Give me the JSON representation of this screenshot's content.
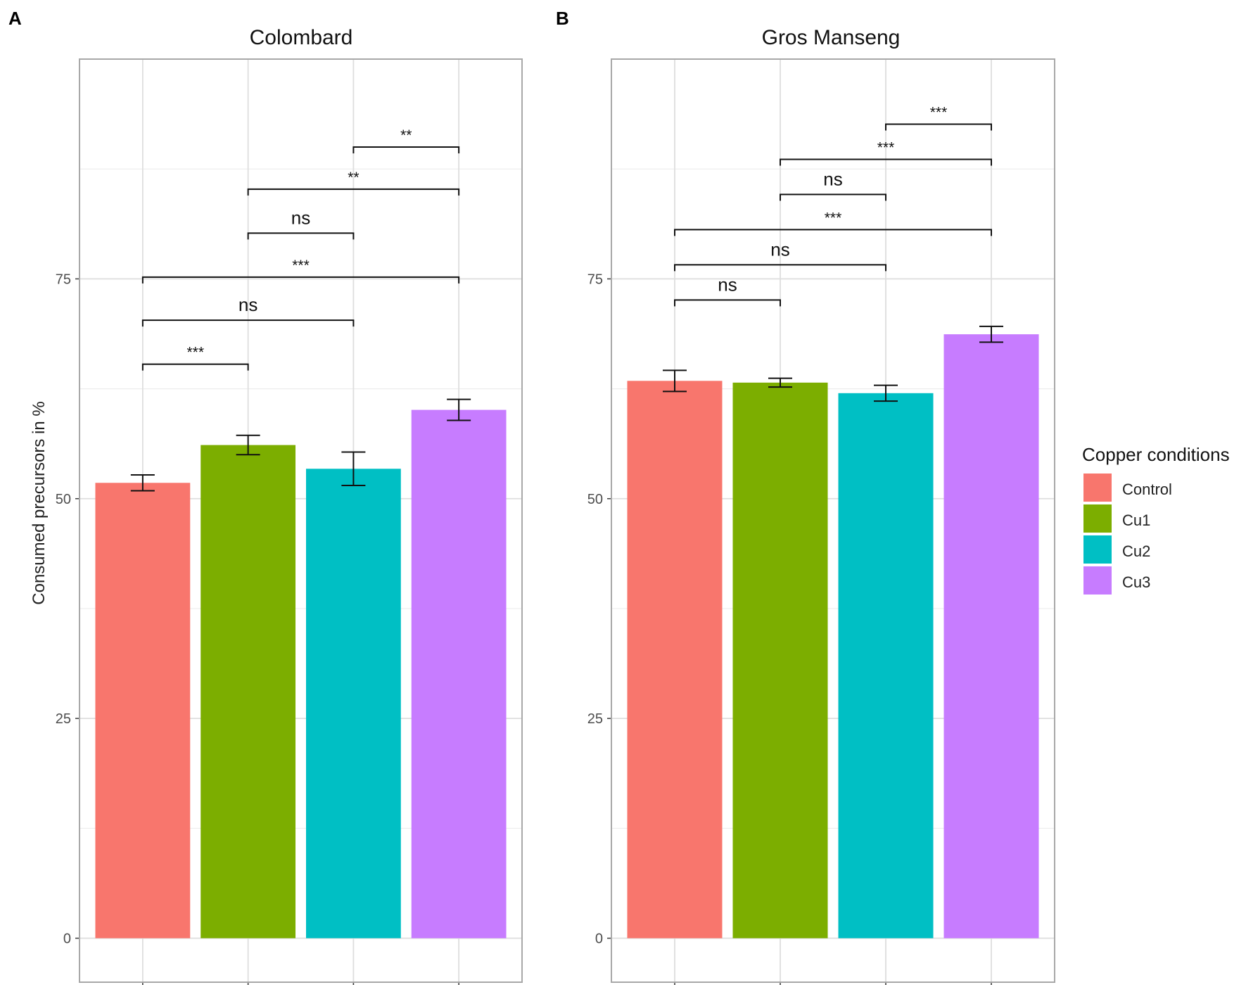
{
  "figure": {
    "y_axis_label": "Consumed precursors in %",
    "legend_title": "Copper conditions"
  },
  "legend": [
    {
      "label": "Control",
      "color": "#F8766D"
    },
    {
      "label": "Cu1",
      "color": "#7CAE00"
    },
    {
      "label": "Cu2",
      "color": "#00BFC4"
    },
    {
      "label": "Cu3",
      "color": "#C77CFF"
    }
  ],
  "chart_data": [
    {
      "type": "bar",
      "panel_label": "A",
      "title": "Colombard",
      "xlabel": "",
      "ylabel": "Consumed precursors in %",
      "ylim": [
        -5,
        100
      ],
      "yticks": [
        0,
        25,
        50,
        75
      ],
      "grid": true,
      "categories": [
        "Control",
        "Cu1",
        "Cu2",
        "Cu3"
      ],
      "values": [
        51.8,
        56.1,
        53.4,
        60.1
      ],
      "errors": [
        0.9,
        1.1,
        1.9,
        1.2
      ],
      "comparisons": [
        {
          "from": 0,
          "to": 1,
          "y": 65.3,
          "label": "***"
        },
        {
          "from": 0,
          "to": 2,
          "y": 70.3,
          "label": "ns"
        },
        {
          "from": 0,
          "to": 3,
          "y": 75.2,
          "label": "***"
        },
        {
          "from": 1,
          "to": 2,
          "y": 80.2,
          "label": "ns"
        },
        {
          "from": 1,
          "to": 3,
          "y": 85.2,
          "label": "**"
        },
        {
          "from": 2,
          "to": 3,
          "y": 90.0,
          "label": "**"
        }
      ]
    },
    {
      "type": "bar",
      "panel_label": "B",
      "title": "Gros Manseng",
      "xlabel": "",
      "ylabel": "",
      "ylim": [
        -5,
        100
      ],
      "yticks": [
        0,
        25,
        50,
        75
      ],
      "grid": true,
      "categories": [
        "Control",
        "Cu1",
        "Cu2",
        "Cu3"
      ],
      "values": [
        63.4,
        63.2,
        62.0,
        68.7
      ],
      "errors": [
        1.2,
        0.5,
        0.9,
        0.9
      ],
      "comparisons": [
        {
          "from": 0,
          "to": 1,
          "y": 72.6,
          "label": "ns"
        },
        {
          "from": 0,
          "to": 2,
          "y": 76.6,
          "label": "ns"
        },
        {
          "from": 0,
          "to": 3,
          "y": 80.6,
          "label": "***"
        },
        {
          "from": 1,
          "to": 2,
          "y": 84.6,
          "label": "ns"
        },
        {
          "from": 1,
          "to": 3,
          "y": 88.6,
          "label": "***"
        },
        {
          "from": 2,
          "to": 3,
          "y": 92.6,
          "label": "***"
        }
      ]
    }
  ]
}
